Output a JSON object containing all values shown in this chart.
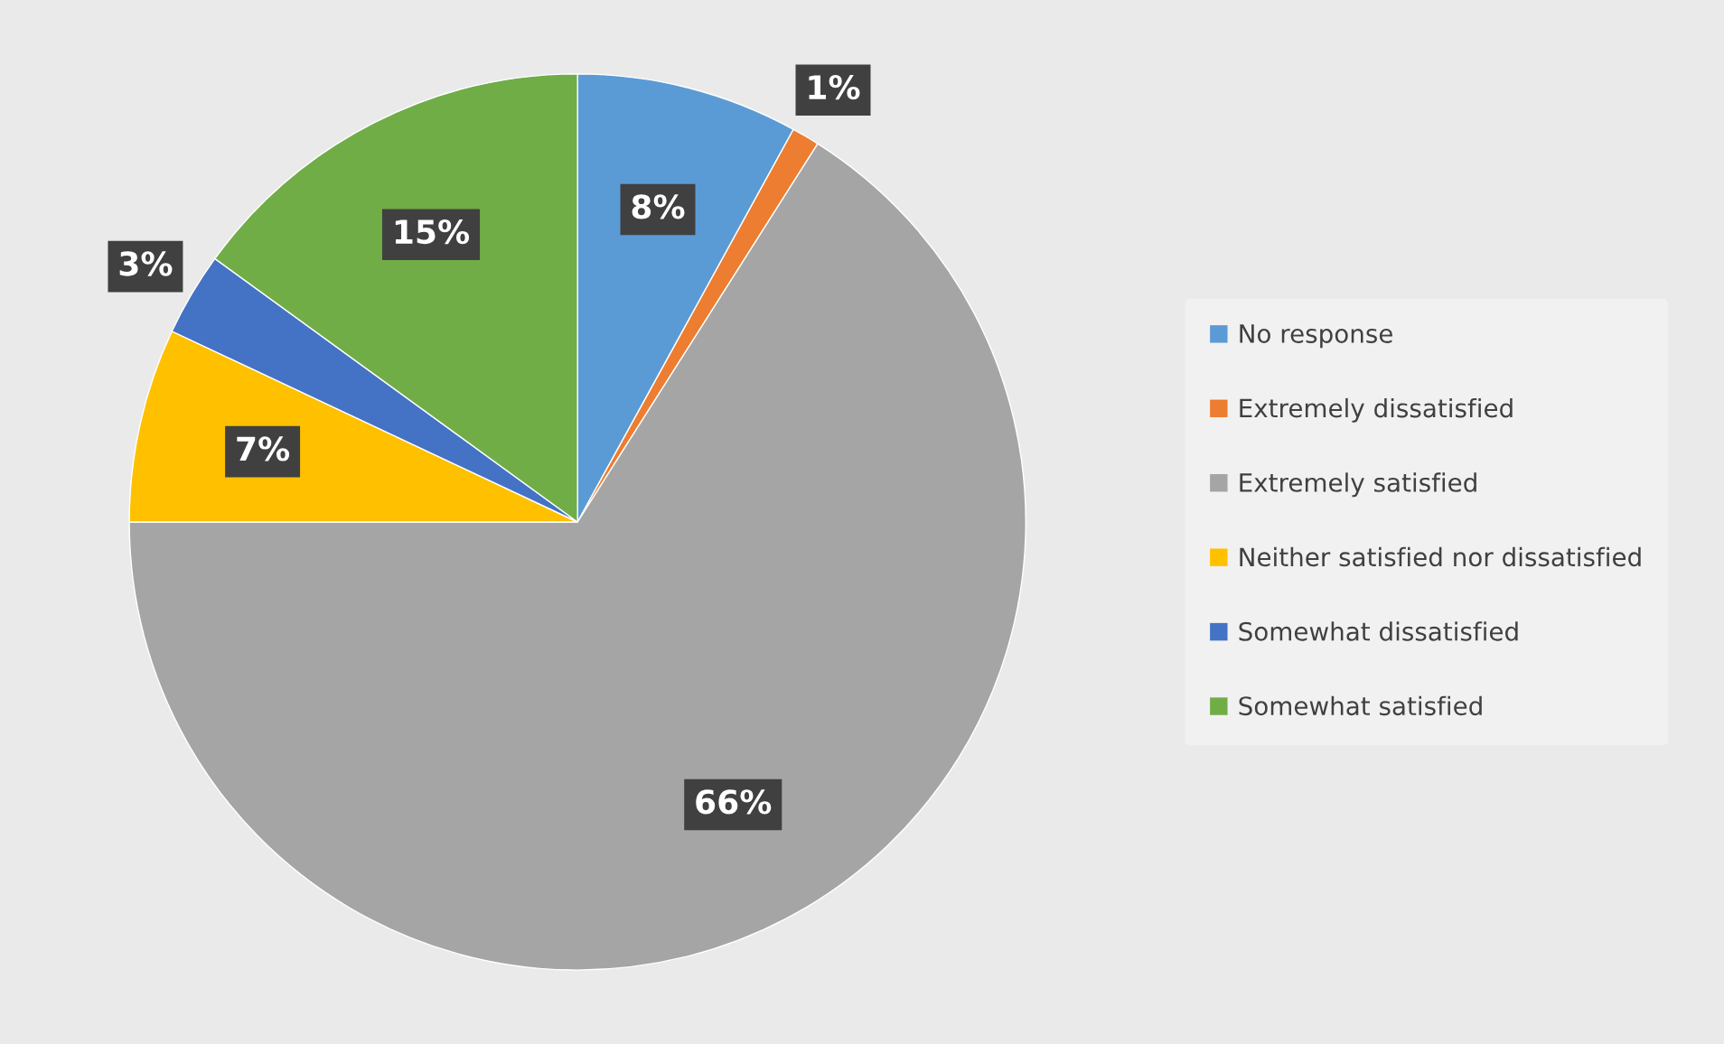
{
  "chart_data": {
    "type": "pie",
    "categories": [
      "No response",
      "Extremely dissatisfied",
      "Extremely satisfied",
      "Neither satisfied nor dissatisfied",
      "Somewhat dissatisfied",
      "Somewhat satisfied"
    ],
    "values": [
      8,
      1,
      66,
      7,
      3,
      15
    ],
    "colors": [
      "#5b9bd5",
      "#ed7d31",
      "#a5a5a5",
      "#ffc000",
      "#4472c4",
      "#70ad47"
    ],
    "value_labels": [
      "8%",
      "1%",
      "66%",
      "7%",
      "3%",
      "15%"
    ],
    "legend": "right"
  }
}
